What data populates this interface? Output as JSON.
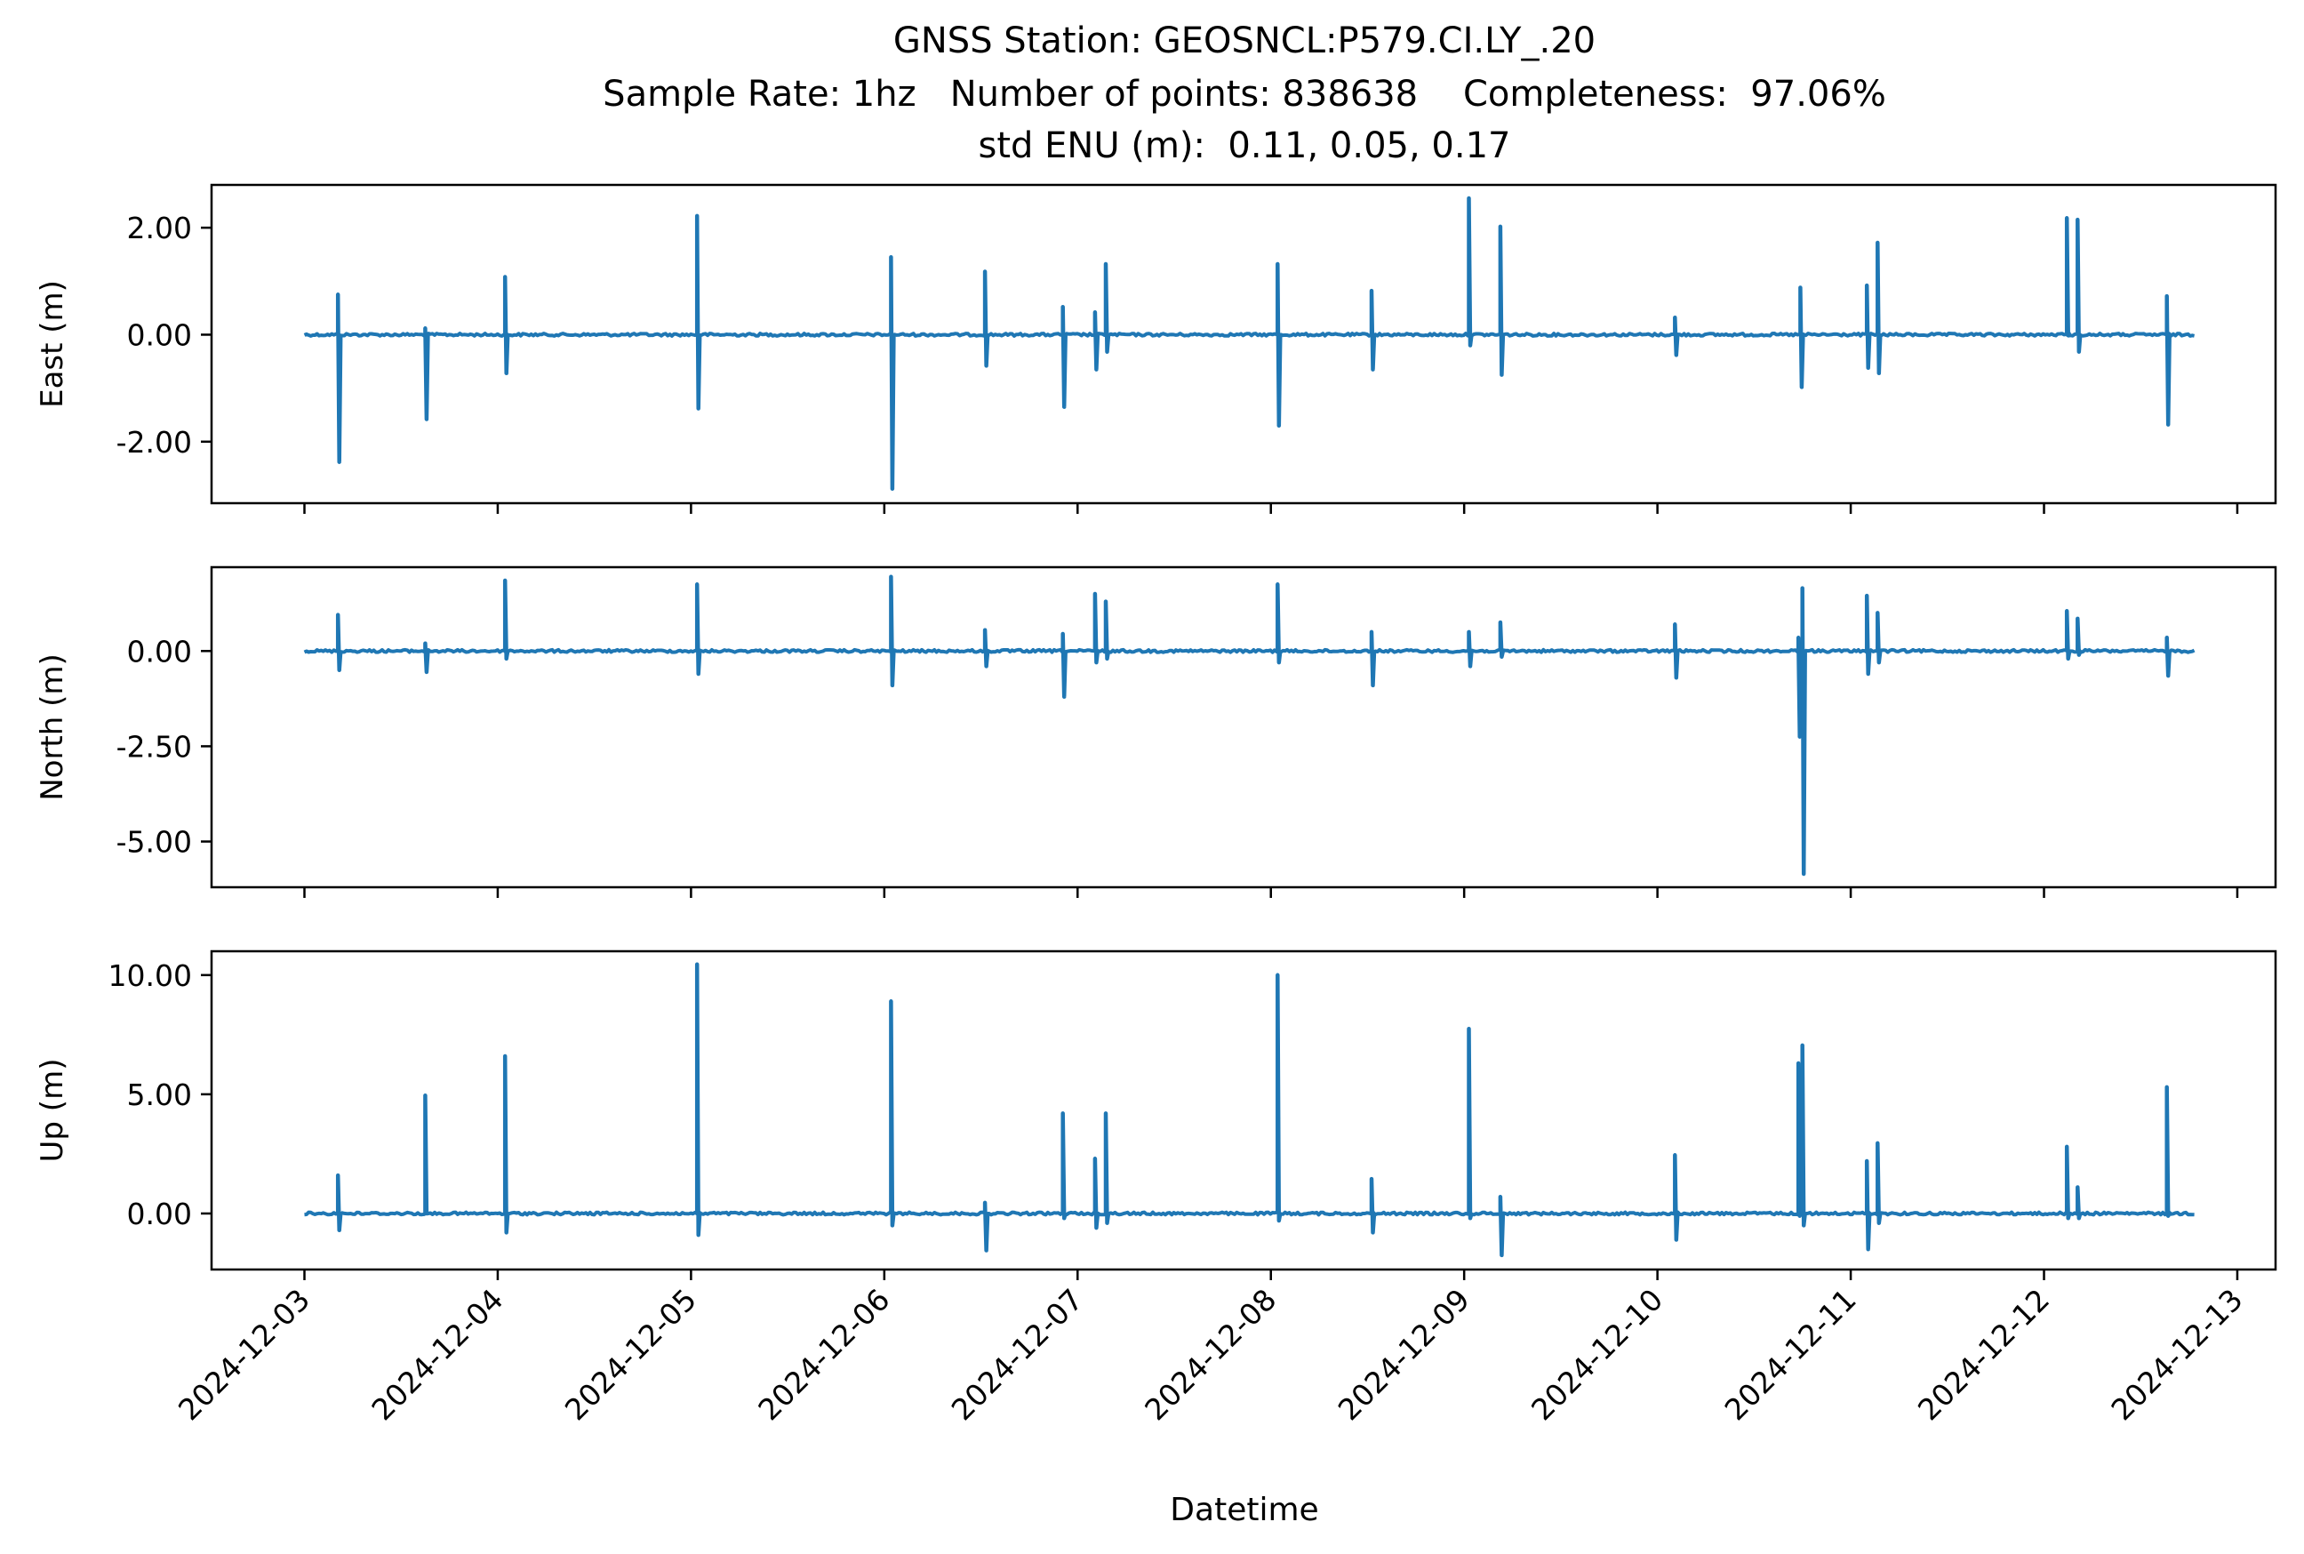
{
  "figure": {
    "title_lines": [
      "GNSS Station: GEOSNCL:P579.CI.LY_.20",
      "Sample Rate: 1hz   Number of points: 838638    Completeness:  97.06%",
      "std ENU (m):  0.11, 0.05, 0.17"
    ],
    "xlabel": "Datetime",
    "line_color": "#1f77b4"
  },
  "chart_data": [
    {
      "type": "line",
      "panel": "east",
      "ylabel": "East (m)",
      "x_axis_type": "date",
      "xlim": [
        "2024-12-02 12:28",
        "2024-12-13 04:45"
      ],
      "xticks": [
        "2024-12-03",
        "2024-12-04",
        "2024-12-05",
        "2024-12-06",
        "2024-12-07",
        "2024-12-08",
        "2024-12-09",
        "2024-12-10",
        "2024-12-11",
        "2024-12-12",
        "2024-12-13"
      ],
      "show_xtick_labels": false,
      "ylim": [
        -3.15,
        2.8
      ],
      "yticks": [
        -2,
        0,
        2
      ],
      "ytick_labels": [
        "-2.00",
        "0.00",
        "2.00"
      ],
      "grid": false,
      "baseline": 0.0,
      "spikes": [
        {
          "t": "2024-12-03 04:10",
          "max": 0.75,
          "min": -2.38
        },
        {
          "t": "2024-12-03 15:00",
          "max": 0.12,
          "min": -1.58
        },
        {
          "t": "2024-12-04 00:55",
          "max": 1.08,
          "min": -0.72
        },
        {
          "t": "2024-12-05 00:45",
          "max": 2.22,
          "min": -1.38
        },
        {
          "t": "2024-12-06 00:50",
          "max": 1.45,
          "min": -2.88
        },
        {
          "t": "2024-12-06 12:30",
          "max": 1.18,
          "min": -0.58
        },
        {
          "t": "2024-12-06 22:10",
          "max": 0.52,
          "min": -1.35
        },
        {
          "t": "2024-12-07 02:10",
          "max": 0.42,
          "min": -0.65
        },
        {
          "t": "2024-12-07 03:30",
          "max": 1.32,
          "min": -0.32
        },
        {
          "t": "2024-12-08 00:50",
          "max": 1.32,
          "min": -1.7
        },
        {
          "t": "2024-12-08 12:30",
          "max": 0.82,
          "min": -0.65
        },
        {
          "t": "2024-12-09 00:35",
          "max": 2.55,
          "min": -0.2
        },
        {
          "t": "2024-12-09 04:30",
          "max": 2.02,
          "min": -0.75
        },
        {
          "t": "2024-12-10 02:10",
          "max": 0.32,
          "min": -0.38
        },
        {
          "t": "2024-12-10 17:45",
          "max": 0.88,
          "min": -0.98
        },
        {
          "t": "2024-12-11 02:00",
          "max": 0.92,
          "min": -0.62
        },
        {
          "t": "2024-12-11 03:20",
          "max": 1.72,
          "min": -0.72
        },
        {
          "t": "2024-12-12 02:50",
          "max": 2.18,
          "min": 0.05
        },
        {
          "t": "2024-12-12 04:10",
          "max": 2.15,
          "min": -0.32
        },
        {
          "t": "2024-12-12 15:15",
          "max": 0.72,
          "min": -1.68
        }
      ]
    },
    {
      "type": "line",
      "panel": "north",
      "ylabel": "North (m)",
      "x_axis_type": "date",
      "xlim": [
        "2024-12-02 12:28",
        "2024-12-13 04:45"
      ],
      "xticks": [
        "2024-12-03",
        "2024-12-04",
        "2024-12-05",
        "2024-12-06",
        "2024-12-07",
        "2024-12-08",
        "2024-12-09",
        "2024-12-10",
        "2024-12-11",
        "2024-12-12",
        "2024-12-13"
      ],
      "show_xtick_labels": false,
      "ylim": [
        -6.2,
        2.2
      ],
      "yticks": [
        -5,
        -2.5,
        0
      ],
      "ytick_labels": [
        "-5.00",
        "-2.50",
        "0.00"
      ],
      "grid": false,
      "baseline": 0.0,
      "spikes": [
        {
          "t": "2024-12-03 04:10",
          "max": 0.95,
          "min": -0.5
        },
        {
          "t": "2024-12-03 15:00",
          "max": 0.2,
          "min": -0.55
        },
        {
          "t": "2024-12-04 00:55",
          "max": 1.85,
          "min": -0.2
        },
        {
          "t": "2024-12-05 00:45",
          "max": 1.75,
          "min": -0.6
        },
        {
          "t": "2024-12-06 00:50",
          "max": 1.95,
          "min": -0.9
        },
        {
          "t": "2024-12-06 12:30",
          "max": 0.55,
          "min": -0.4
        },
        {
          "t": "2024-12-06 22:10",
          "max": 0.45,
          "min": -1.2
        },
        {
          "t": "2024-12-07 02:10",
          "max": 1.5,
          "min": -0.3
        },
        {
          "t": "2024-12-07 03:30",
          "max": 1.3,
          "min": -0.2
        },
        {
          "t": "2024-12-08 00:50",
          "max": 1.75,
          "min": -0.3
        },
        {
          "t": "2024-12-08 12:30",
          "max": 0.5,
          "min": -0.9
        },
        {
          "t": "2024-12-09 00:35",
          "max": 0.5,
          "min": -0.4
        },
        {
          "t": "2024-12-09 04:30",
          "max": 0.75,
          "min": -0.15
        },
        {
          "t": "2024-12-10 02:10",
          "max": 0.7,
          "min": -0.7
        },
        {
          "t": "2024-12-10 17:30",
          "max": 0.35,
          "min": -2.25
        },
        {
          "t": "2024-12-10 18:00",
          "max": 1.65,
          "min": -5.85
        },
        {
          "t": "2024-12-11 02:00",
          "max": 1.45,
          "min": -0.6
        },
        {
          "t": "2024-12-11 03:20",
          "max": 1.0,
          "min": -0.3
        },
        {
          "t": "2024-12-12 02:50",
          "max": 1.05,
          "min": -0.2
        },
        {
          "t": "2024-12-12 04:10",
          "max": 0.85,
          "min": -0.1
        },
        {
          "t": "2024-12-12 15:15",
          "max": 0.35,
          "min": -0.65
        }
      ]
    },
    {
      "type": "line",
      "panel": "up",
      "ylabel": "Up (m)",
      "x_axis_type": "date",
      "xlim": [
        "2024-12-02 12:28",
        "2024-12-13 04:45"
      ],
      "xticks": [
        "2024-12-03",
        "2024-12-04",
        "2024-12-05",
        "2024-12-06",
        "2024-12-07",
        "2024-12-08",
        "2024-12-09",
        "2024-12-10",
        "2024-12-11",
        "2024-12-12",
        "2024-12-13"
      ],
      "xtick_labels": [
        "2024-12-03",
        "2024-12-04",
        "2024-12-05",
        "2024-12-06",
        "2024-12-07",
        "2024-12-08",
        "2024-12-09",
        "2024-12-10",
        "2024-12-11",
        "2024-12-12",
        "2024-12-13"
      ],
      "show_xtick_labels": true,
      "ylim": [
        -2.35,
        11.0
      ],
      "yticks": [
        0,
        5,
        10
      ],
      "ytick_labels": [
        "0.00",
        "5.00",
        "10.00"
      ],
      "grid": false,
      "baseline": 0.0,
      "spikes": [
        {
          "t": "2024-12-03 04:10",
          "max": 1.6,
          "min": -0.7
        },
        {
          "t": "2024-12-03 15:00",
          "max": 4.95,
          "min": 0.0
        },
        {
          "t": "2024-12-04 00:55",
          "max": 6.6,
          "min": -0.8
        },
        {
          "t": "2024-12-05 00:45",
          "max": 10.45,
          "min": -0.9
        },
        {
          "t": "2024-12-06 00:50",
          "max": 8.9,
          "min": -0.5
        },
        {
          "t": "2024-12-06 12:30",
          "max": 0.45,
          "min": -1.55
        },
        {
          "t": "2024-12-06 22:10",
          "max": 4.2,
          "min": -0.2
        },
        {
          "t": "2024-12-07 02:10",
          "max": 2.3,
          "min": -0.6
        },
        {
          "t": "2024-12-07 03:30",
          "max": 4.2,
          "min": -0.4
        },
        {
          "t": "2024-12-08 00:50",
          "max": 10.0,
          "min": -0.3
        },
        {
          "t": "2024-12-08 12:30",
          "max": 1.45,
          "min": -0.8
        },
        {
          "t": "2024-12-09 00:35",
          "max": 7.75,
          "min": -0.2
        },
        {
          "t": "2024-12-09 04:30",
          "max": 0.7,
          "min": -1.75
        },
        {
          "t": "2024-12-10 02:10",
          "max": 2.45,
          "min": -1.1
        },
        {
          "t": "2024-12-10 17:30",
          "max": 6.3,
          "min": -0.1
        },
        {
          "t": "2024-12-10 18:00",
          "max": 7.05,
          "min": -0.5
        },
        {
          "t": "2024-12-11 02:00",
          "max": 2.2,
          "min": -1.5
        },
        {
          "t": "2024-12-11 03:20",
          "max": 2.95,
          "min": -0.4
        },
        {
          "t": "2024-12-12 02:50",
          "max": 2.8,
          "min": -0.2
        },
        {
          "t": "2024-12-12 04:10",
          "max": 1.1,
          "min": -0.2
        },
        {
          "t": "2024-12-12 15:15",
          "max": 5.3,
          "min": -0.1
        }
      ]
    }
  ]
}
